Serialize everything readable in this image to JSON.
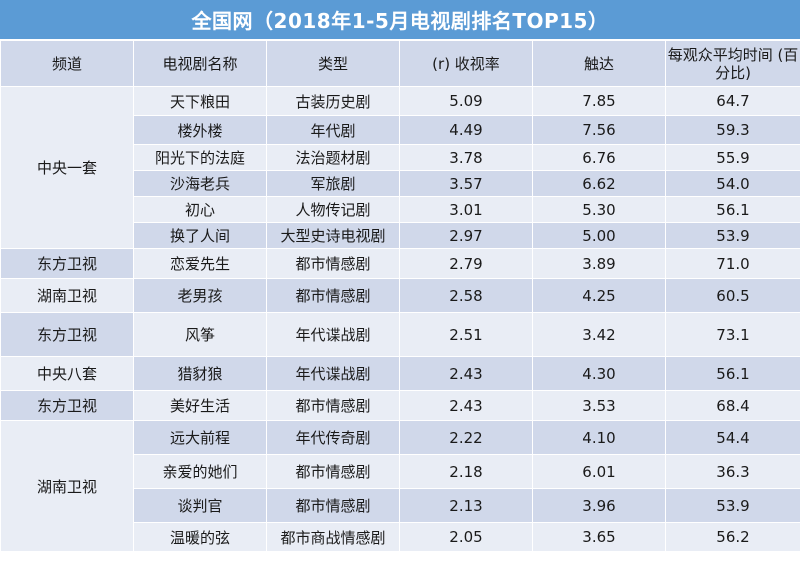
{
  "title": "全国网（2018年1-5月电视剧排名TOP15）",
  "headers": [
    "频道",
    "电视剧名称",
    "类型",
    "(r) 收视率",
    "触达",
    "每观众平均时间 (百分比)"
  ],
  "groups": [
    {
      "channel": "中央一套",
      "rows": [
        {
          "name": "天下粮田",
          "type": "古装历史剧",
          "rating": "5.09",
          "reach": "7.85",
          "avg_time": "64.7"
        },
        {
          "name": "楼外楼",
          "type": "年代剧",
          "rating": "4.49",
          "reach": "7.56",
          "avg_time": "59.3"
        },
        {
          "name": "阳光下的法庭",
          "type": "法治题材剧",
          "rating": "3.78",
          "reach": "6.76",
          "avg_time": "55.9"
        },
        {
          "name": "沙海老兵",
          "type": "军旅剧",
          "rating": "3.57",
          "reach": "6.62",
          "avg_time": "54.0"
        },
        {
          "name": "初心",
          "type": "人物传记剧",
          "rating": "3.01",
          "reach": "5.30",
          "avg_time": "56.1"
        },
        {
          "name": "换了人间",
          "type": "大型史诗电视剧",
          "rating": "2.97",
          "reach": "5.00",
          "avg_time": "53.9"
        }
      ]
    },
    {
      "channel": "东方卫视",
      "rows": [
        {
          "name": "恋爱先生",
          "type": "都市情感剧",
          "rating": "2.79",
          "reach": "3.89",
          "avg_time": "71.0"
        }
      ]
    },
    {
      "channel": "湖南卫视",
      "rows": [
        {
          "name": "老男孩",
          "type": "都市情感剧",
          "rating": "2.58",
          "reach": "4.25",
          "avg_time": "60.5"
        }
      ]
    },
    {
      "channel": "东方卫视",
      "rows": [
        {
          "name": "风筝",
          "type": "年代谍战剧",
          "rating": "2.51",
          "reach": "3.42",
          "avg_time": "73.1"
        }
      ]
    },
    {
      "channel": "中央八套",
      "rows": [
        {
          "name": "猎豺狼",
          "type": "年代谍战剧",
          "rating": "2.43",
          "reach": "4.30",
          "avg_time": "56.1"
        }
      ]
    },
    {
      "channel": "东方卫视",
      "rows": [
        {
          "name": "美好生活",
          "type": "都市情感剧",
          "rating": "2.43",
          "reach": "3.53",
          "avg_time": "68.4"
        }
      ]
    },
    {
      "channel": "湖南卫视",
      "rows": [
        {
          "name": "远大前程",
          "type": "年代传奇剧",
          "rating": "2.22",
          "reach": "4.10",
          "avg_time": "54.4"
        },
        {
          "name": "亲爱的她们",
          "type": "都市情感剧",
          "rating": "2.18",
          "reach": "6.01",
          "avg_time": "36.3"
        },
        {
          "name": "谈判官",
          "type": "都市情感剧",
          "rating": "2.13",
          "reach": "3.96",
          "avg_time": "53.9"
        },
        {
          "name": "温暖的弦",
          "type": "都市商战情感剧",
          "rating": "2.05",
          "reach": "3.65",
          "avg_time": "56.2"
        }
      ]
    }
  ]
}
